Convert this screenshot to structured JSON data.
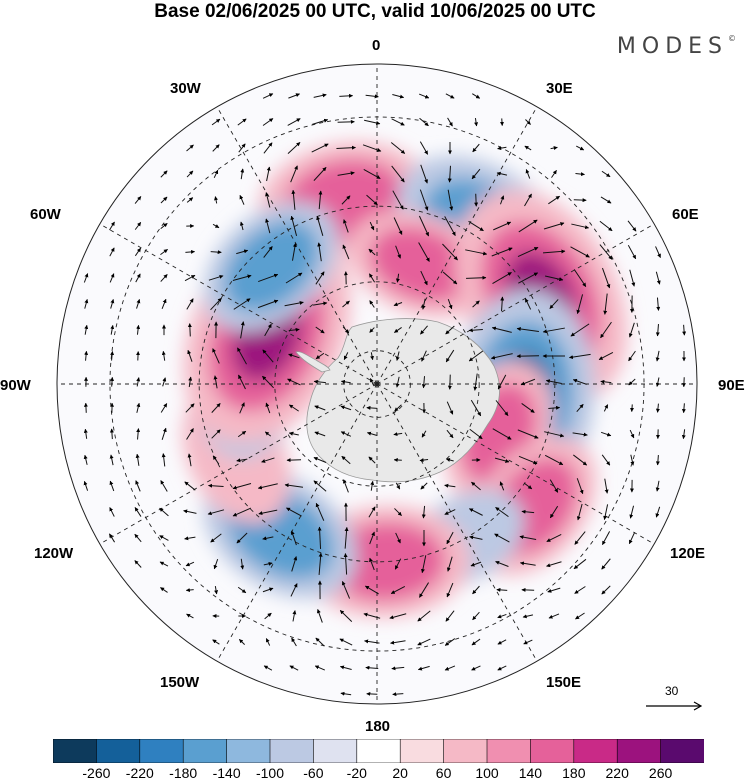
{
  "title": "Base 02/06/2025 00 UTC, valid 10/06/2025 00 UTC",
  "brand": "MODES",
  "brand_mark": "©",
  "longitude_labels": {
    "n0": "0",
    "e30": "30E",
    "e60": "60E",
    "e90": "90E",
    "e120": "120E",
    "e150": "150E",
    "s180": "180",
    "w150": "150W",
    "w120": "120W",
    "w90": "90W",
    "w60": "60W",
    "w30": "30W"
  },
  "vector_scale": {
    "label": "30"
  },
  "colorbar": {
    "colors": [
      "#0d3a5c",
      "#14609a",
      "#2f80c0",
      "#5a9fd0",
      "#8eb8de",
      "#bcc9e3",
      "#dfe2f0",
      "#ffffff",
      "#f9dce0",
      "#f5b9c6",
      "#f08fb0",
      "#e5619a",
      "#c92a87",
      "#9c127e",
      "#5a0a6e"
    ],
    "ticks": [
      "-260",
      "-220",
      "-180",
      "-140",
      "-100",
      "-60",
      "-20",
      "20",
      "60",
      "100",
      "140",
      "180",
      "220",
      "260"
    ]
  },
  "anomaly_colors": {
    "strong_negative": "#14609a",
    "moderate_negative": "#5a9fd0",
    "weak_negative": "#bcc9e3",
    "weak_positive": "#f5b9c6",
    "moderate_positive": "#e5619a",
    "strong_positive": "#9c127e",
    "antarctica": "#e9e9e9"
  },
  "map": {
    "projection": "south-polar-stereographic",
    "anomalies": [
      {
        "kind": "positive",
        "lon": 350,
        "lat": -38,
        "peak": 160
      },
      {
        "kind": "negative",
        "lon": 35,
        "lat": -38,
        "peak": -190
      },
      {
        "kind": "positive",
        "lon": 20,
        "lat": -53,
        "peak": 120
      },
      {
        "kind": "positive",
        "lon": 62,
        "lat": -38,
        "peak": 250
      },
      {
        "kind": "negative",
        "lon": 95,
        "lat": -48,
        "peak": -230
      },
      {
        "kind": "positive",
        "lon": 112,
        "lat": -52,
        "peak": 120
      },
      {
        "kind": "positive",
        "lon": 128,
        "lat": -35,
        "peak": 130
      },
      {
        "kind": "negative",
        "lon": 150,
        "lat": -40,
        "peak": -80
      },
      {
        "kind": "positive",
        "lon": 177,
        "lat": -40,
        "peak": 150
      },
      {
        "kind": "negative",
        "lon": 213,
        "lat": -40,
        "peak": -150
      },
      {
        "kind": "positive",
        "lon": 243,
        "lat": -45,
        "peak": 110
      },
      {
        "kind": "negative",
        "lon": 274,
        "lat": -52,
        "peak": -150
      },
      {
        "kind": "positive",
        "lon": 294,
        "lat": -55,
        "peak": 250
      },
      {
        "kind": "negative",
        "lon": 318,
        "lat": -45,
        "peak": -130
      }
    ]
  }
}
